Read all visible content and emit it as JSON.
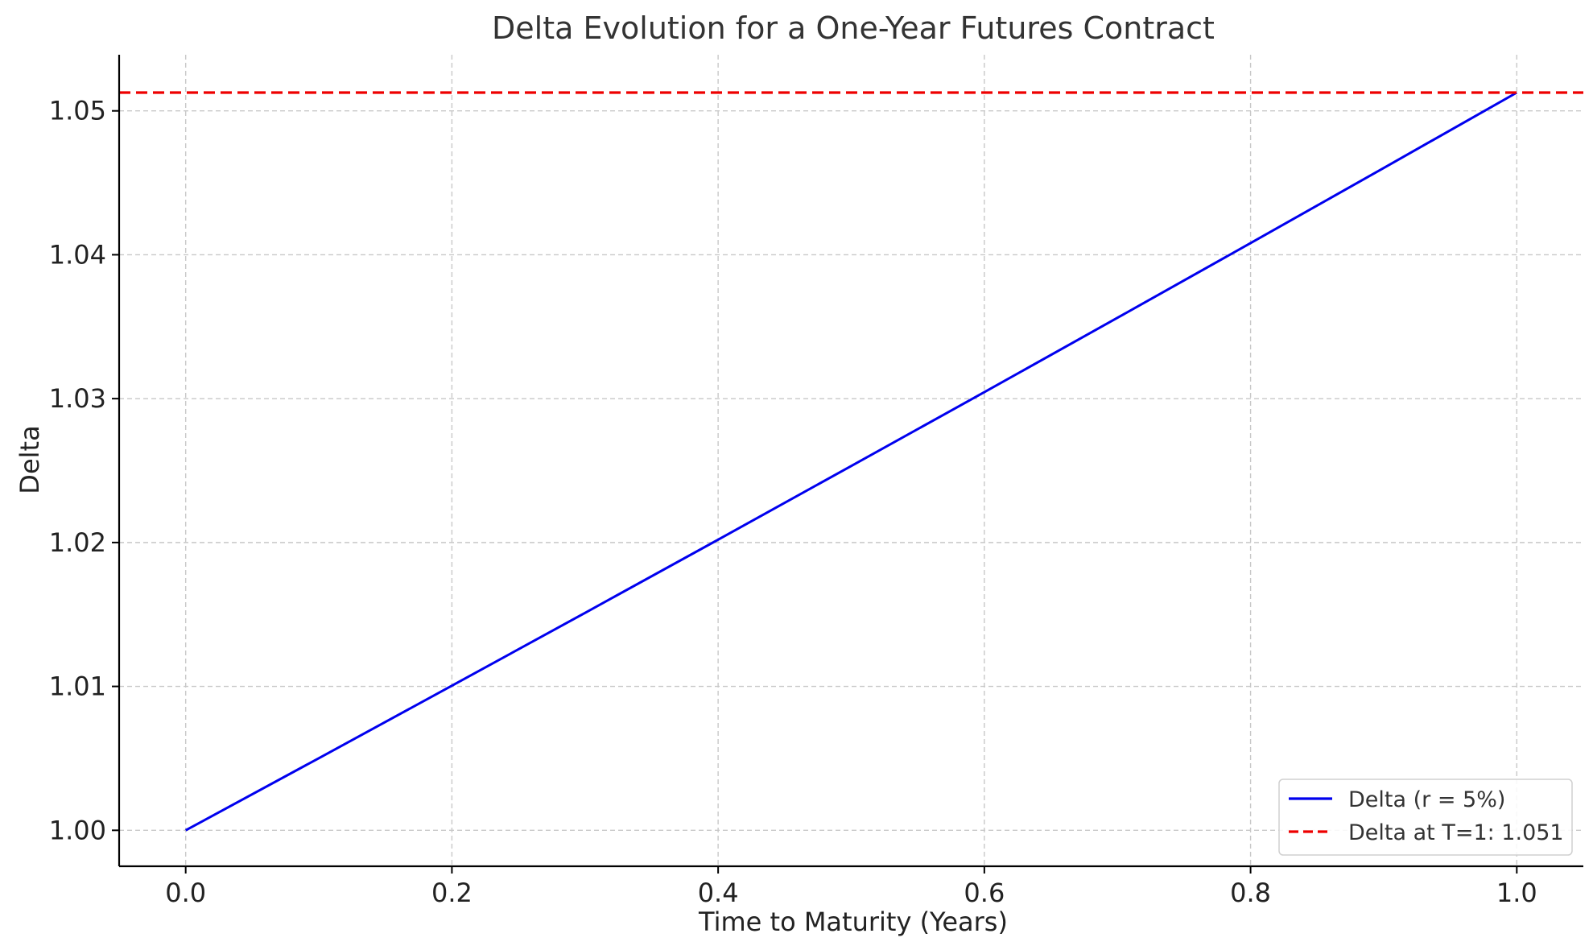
{
  "chart_data": {
    "type": "line",
    "title": "Delta Evolution for a One-Year Futures Contract",
    "xlabel": "Time to Maturity (Years)",
    "ylabel": "Delta",
    "xlim": [
      -0.05,
      1.05
    ],
    "ylim": [
      0.9975,
      1.0539
    ],
    "xticks": [
      0.0,
      0.2,
      0.4,
      0.6,
      0.8,
      1.0
    ],
    "xtick_labels": [
      "0.0",
      "0.2",
      "0.4",
      "0.6",
      "0.8",
      "1.0"
    ],
    "yticks": [
      1.0,
      1.01,
      1.02,
      1.03,
      1.04,
      1.05
    ],
    "ytick_labels": [
      "1.00",
      "1.01",
      "1.02",
      "1.03",
      "1.04",
      "1.05"
    ],
    "grid": true,
    "legend_position": "lower-right",
    "series": [
      {
        "name": "Delta (r = 5%)",
        "color": "#0000ee",
        "style": "solid",
        "x": [
          0.0,
          0.1,
          0.2,
          0.3,
          0.4,
          0.5,
          0.6,
          0.7,
          0.8,
          0.9,
          1.0
        ],
        "y": [
          1.0,
          1.00501,
          1.01005,
          1.01511,
          1.0202,
          1.02532,
          1.03045,
          1.03562,
          1.04081,
          1.04603,
          1.05127
        ]
      },
      {
        "name": "Delta at T=1: 1.051",
        "color": "#ee0000",
        "style": "dashed",
        "type": "hline",
        "y": 1.05127
      }
    ]
  }
}
